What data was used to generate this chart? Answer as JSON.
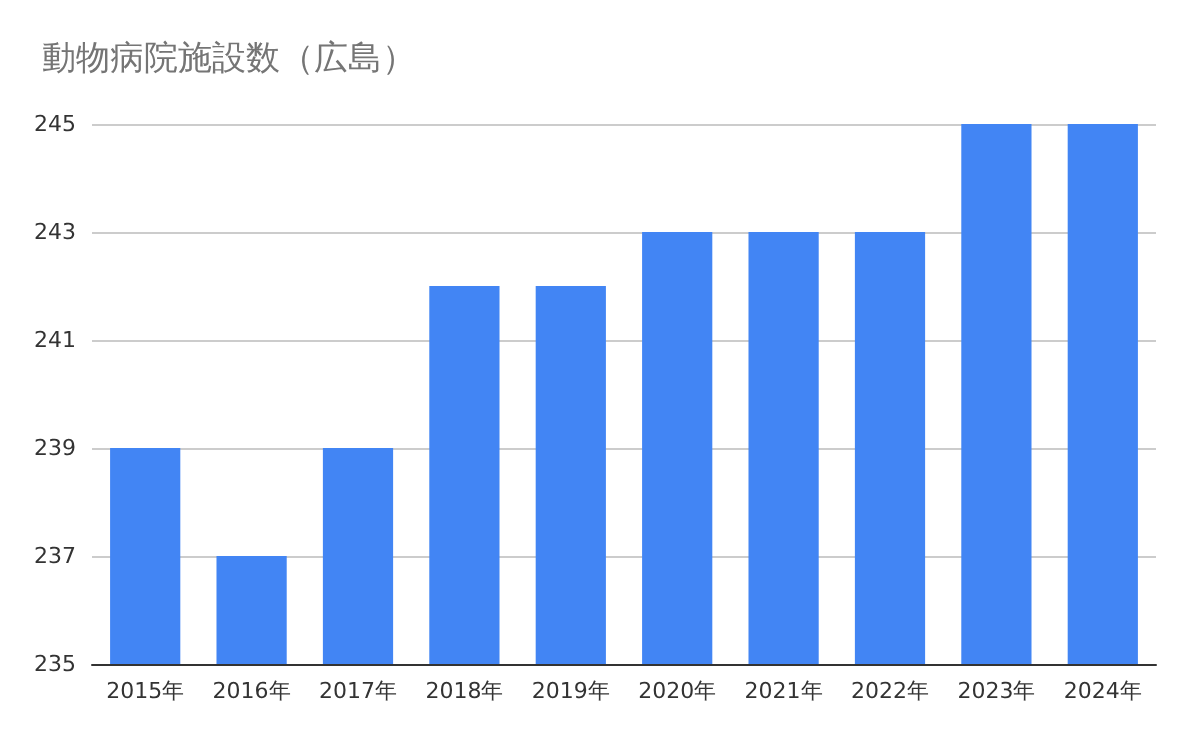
{
  "chart_data": {
    "type": "bar",
    "title": "動物病院施設数（広島）",
    "categories": [
      "2015年",
      "2016年",
      "2017年",
      "2018年",
      "2019年",
      "2020年",
      "2021年",
      "2022年",
      "2023年",
      "2024年"
    ],
    "values": [
      239,
      237,
      239,
      242,
      242,
      243,
      243,
      243,
      245,
      245
    ],
    "color": "#4285f4",
    "ylim": [
      235,
      245
    ],
    "yticks": [
      235,
      237,
      239,
      241,
      243,
      245
    ],
    "grid": "y"
  }
}
